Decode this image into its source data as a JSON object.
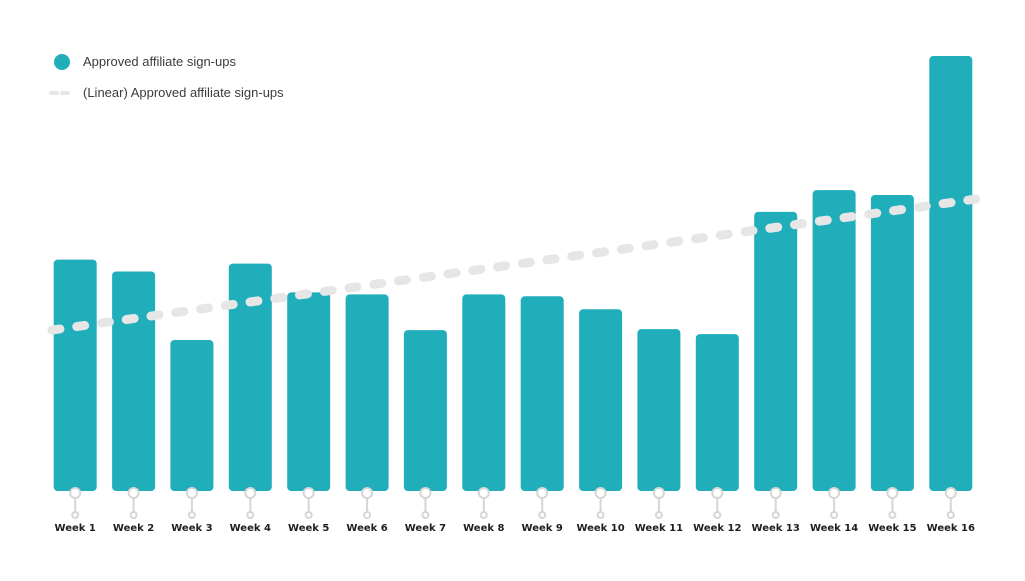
{
  "chart_data": {
    "type": "bar",
    "title": "",
    "xlabel": "",
    "ylabel": "",
    "categories": [
      "Week 1",
      "Week 2",
      "Week 3",
      "Week 4",
      "Week 5",
      "Week 6",
      "Week 7",
      "Week 8",
      "Week 9",
      "Week 10",
      "Week 11",
      "Week 12",
      "Week 13",
      "Week 14",
      "Week 15",
      "Week 16"
    ],
    "series": [
      {
        "name": "Approved affiliate sign-ups",
        "values": [
          233,
          221,
          152,
          229,
          200,
          198,
          162,
          198,
          196,
          183,
          163,
          158,
          281,
          303,
          298,
          438
        ],
        "color": "#20aebb"
      }
    ],
    "trendline": {
      "name": "(Linear) Approved affiliate sign-ups",
      "type": "linear",
      "start": 162,
      "end": 294,
      "color": "#e6e6e6",
      "style": "dashed"
    },
    "ylim": [
      0,
      440
    ],
    "grid": false,
    "legend_position": "top-left"
  }
}
